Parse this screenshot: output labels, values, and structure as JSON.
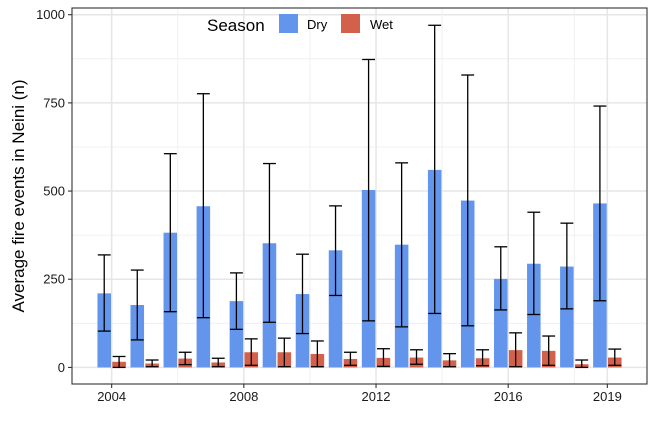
{
  "chart_data": {
    "type": "bar",
    "title": "",
    "xlabel": "",
    "ylabel": "Average fire events in Neini (n)",
    "x": [
      2004,
      2005,
      2006,
      2007,
      2008,
      2009,
      2010,
      2011,
      2012,
      2013,
      2014,
      2015,
      2016,
      2017,
      2018,
      2019
    ],
    "x_ticks": [
      "2004",
      "2008",
      "2012",
      "2016",
      "2019"
    ],
    "x_tick_values": [
      2004,
      2008,
      2012,
      2016,
      2019
    ],
    "y_ticks": [
      "0",
      "250",
      "500",
      "750",
      "1000"
    ],
    "y_tick_values": [
      0,
      250,
      500,
      750,
      1000
    ],
    "xlim": [
      2002.8,
      2020.2
    ],
    "ylim": [
      -47,
      1019
    ],
    "grid": true,
    "legend": {
      "title": "Season",
      "placement": "top-center",
      "entries": [
        "Dry",
        "Wet"
      ]
    },
    "series": [
      {
        "name": "Dry",
        "color": "#6495ED",
        "values": [
          210,
          177,
          382,
          457,
          188,
          352,
          208,
          332,
          503,
          348,
          560,
          473,
          251,
          294,
          286,
          465
        ],
        "err_low": [
          103,
          78,
          158,
          141,
          108,
          128,
          96,
          204,
          132,
          115,
          153,
          118,
          163,
          150,
          166,
          189
        ],
        "err_high": [
          319,
          276,
          606,
          776,
          268,
          578,
          321,
          458,
          873,
          580,
          970,
          829,
          342,
          440,
          409,
          741
        ]
      },
      {
        "name": "Wet",
        "color": "#D2604A",
        "values": [
          16,
          11,
          25,
          14,
          43,
          43,
          38,
          24,
          27,
          28,
          20,
          26,
          49,
          47,
          9,
          28
        ],
        "err_low": [
          0,
          2,
          8,
          2,
          6,
          2,
          2,
          6,
          3,
          9,
          2,
          5,
          2,
          6,
          0,
          6
        ],
        "err_high": [
          31,
          21,
          43,
          26,
          81,
          83,
          75,
          43,
          53,
          50,
          39,
          50,
          98,
          89,
          21,
          52
        ]
      }
    ]
  }
}
